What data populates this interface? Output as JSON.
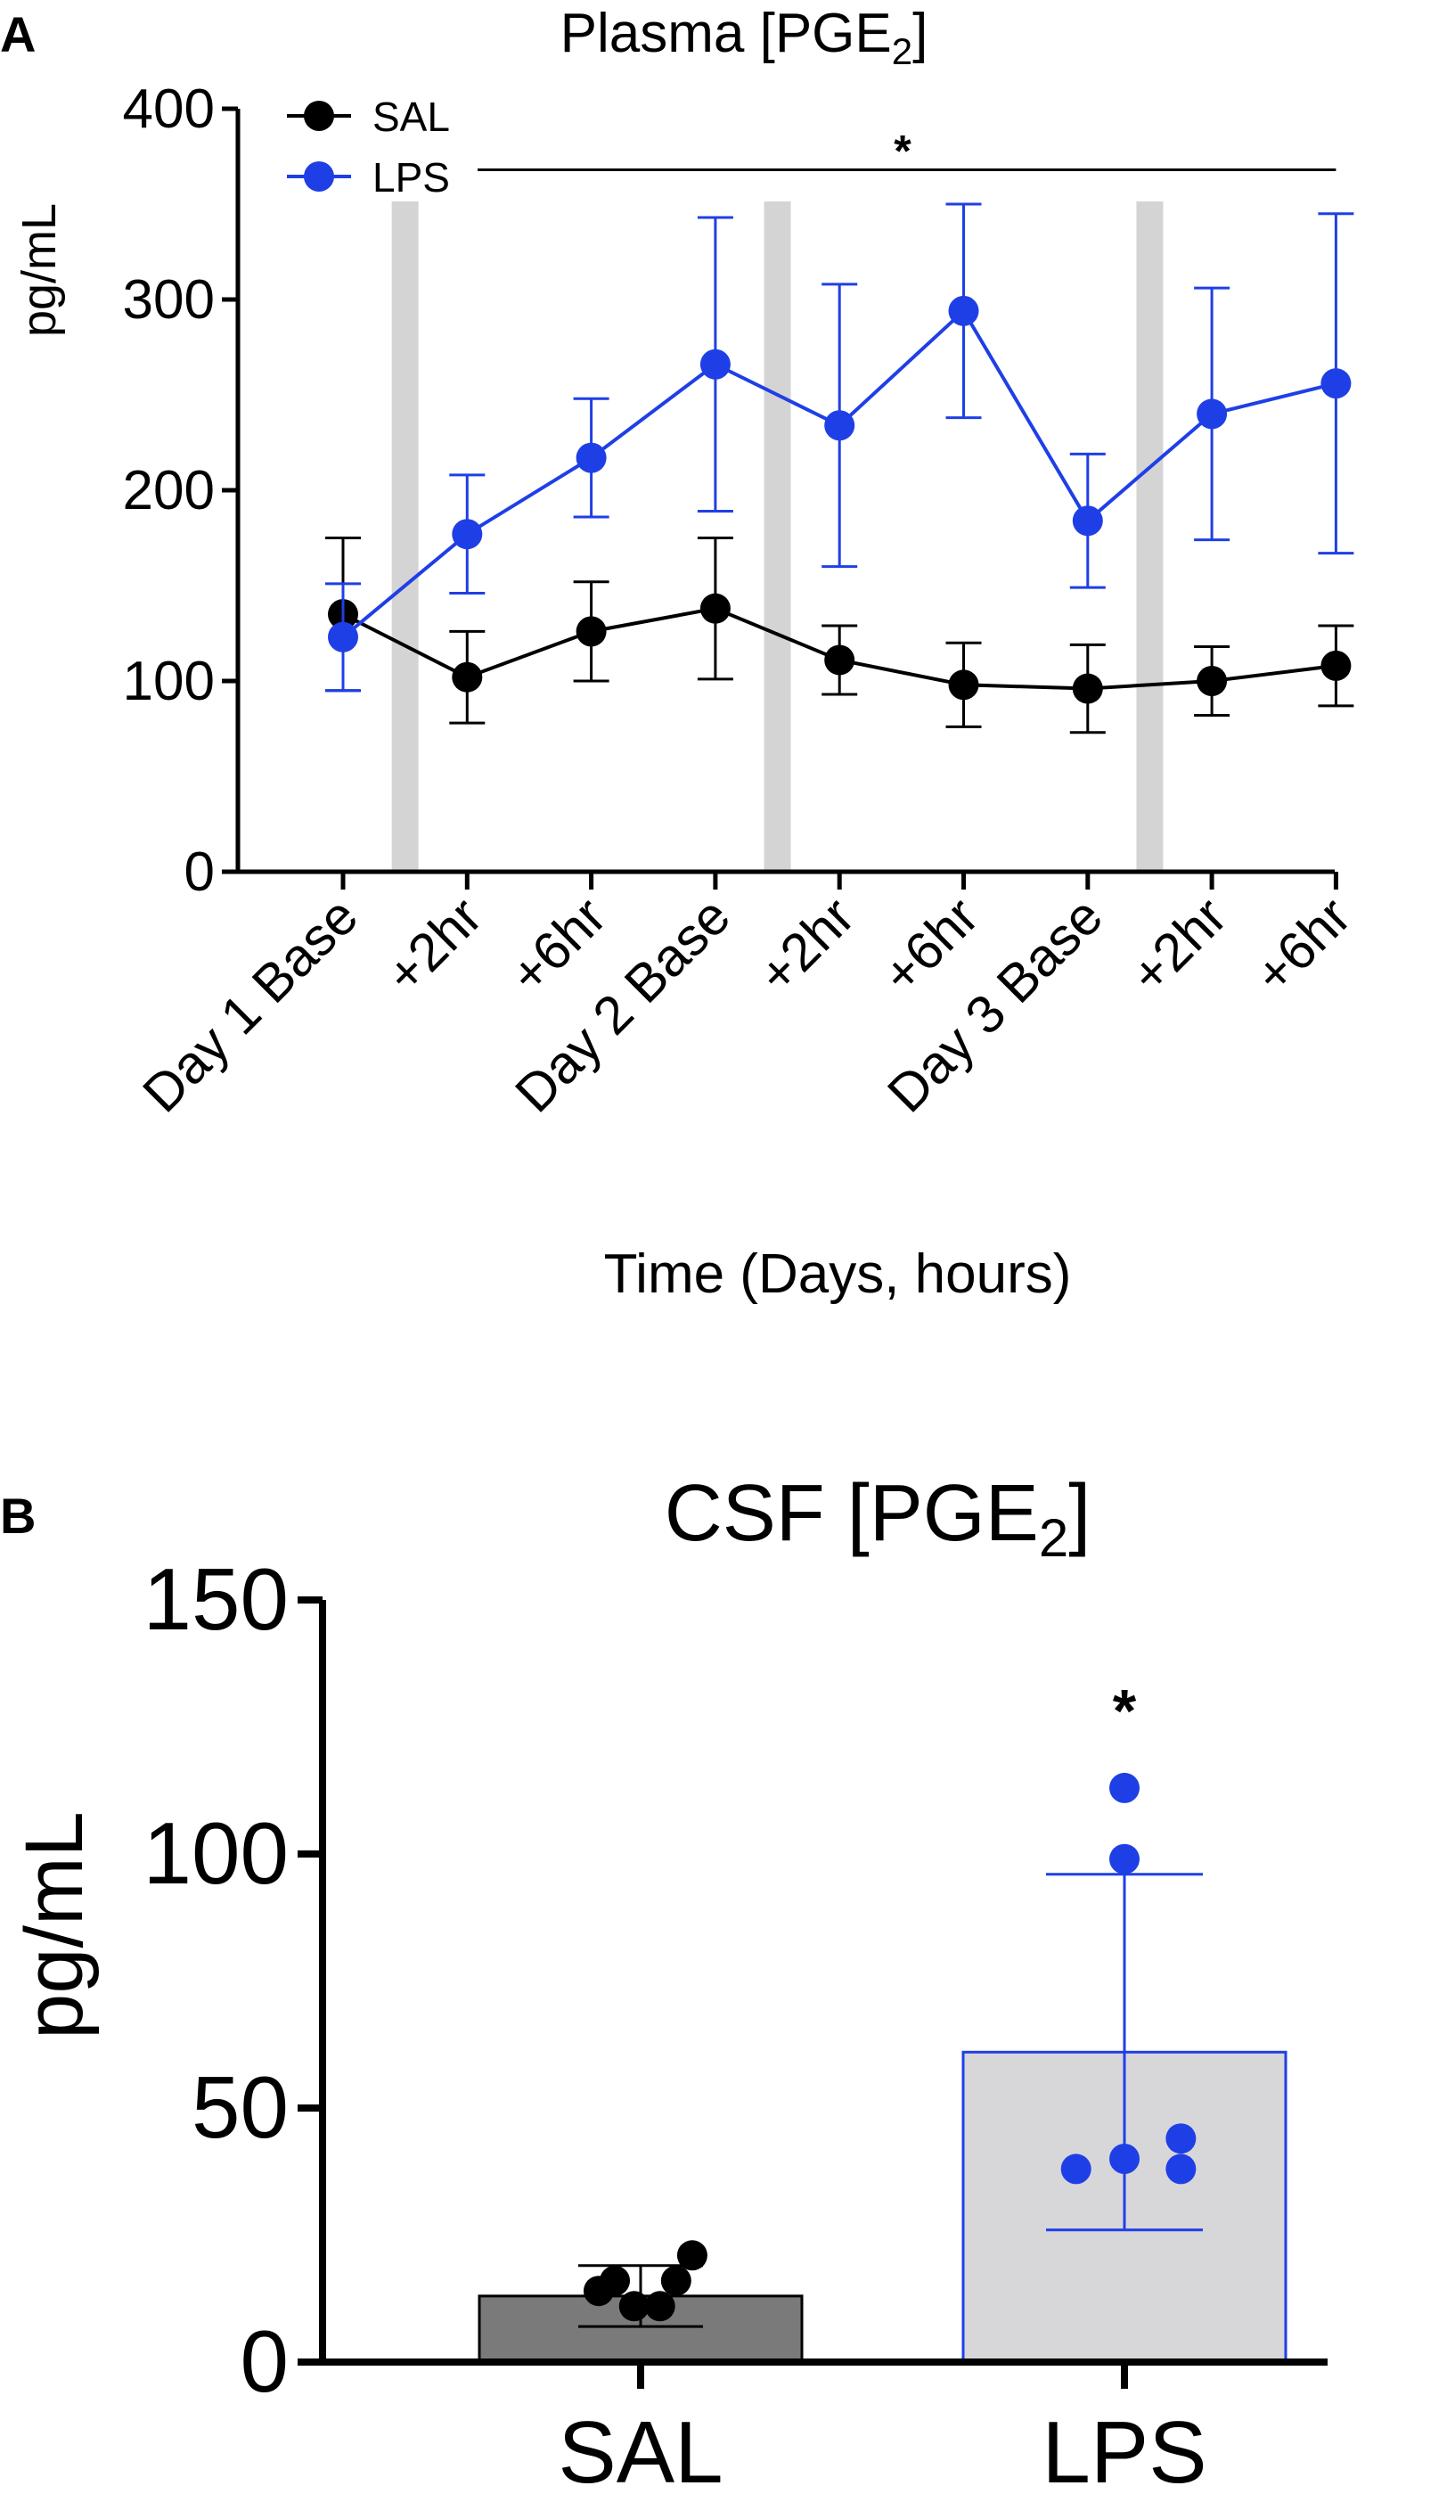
{
  "chart_data": [
    {
      "type": "line",
      "panel_label": "A",
      "title": "Plasma [PGE",
      "title_subscript": "2",
      "title_suffix": "]",
      "xlabel": "Time (Days, hours)",
      "ylabel": "pg/mL",
      "ylim": [
        0,
        400
      ],
      "yticks": [
        0,
        100,
        200,
        300,
        400
      ],
      "categories": [
        "Day 1 Base",
        "+2hr",
        "+6hr",
        "Day 2 Base",
        "+2hr",
        "+6hr",
        "Day 3 Base",
        "+2hr",
        "+6hr"
      ],
      "shaded_between": [
        [
          0,
          1
        ],
        [
          3,
          4
        ],
        [
          6,
          7
        ]
      ],
      "series": [
        {
          "name": "SAL",
          "color": "#000000",
          "values": [
            135,
            102,
            126,
            138,
            111,
            98,
            96,
            100,
            108
          ],
          "error": [
            40,
            24,
            26,
            37,
            18,
            22,
            23,
            18,
            21
          ]
        },
        {
          "name": "LPS",
          "color": "#1f3fe6",
          "values": [
            123,
            177,
            217,
            266,
            234,
            294,
            184,
            240,
            256
          ],
          "error": [
            28,
            31,
            31,
            77,
            74,
            56,
            35,
            66,
            89
          ]
        }
      ],
      "significance": {
        "label": "*",
        "from_category": 1,
        "to_category": 8,
        "at_value": 368
      },
      "legend_position": "top-left"
    },
    {
      "type": "bar",
      "panel_label": "B",
      "title": "CSF [PGE",
      "title_subscript": "2",
      "title_suffix": "]",
      "xlabel": "",
      "ylabel": "pg/mL",
      "ylim": [
        0,
        150
      ],
      "yticks": [
        0,
        50,
        100,
        150
      ],
      "categories": [
        "SAL",
        "LPS"
      ],
      "series": [
        {
          "name": "SAL",
          "value": 13,
          "error": 6,
          "bar_color": "#7a7a7a",
          "edge_color": "#000000",
          "point_color": "#000000",
          "points": [
            [
              -0.26,
              14
            ],
            [
              -0.16,
              16
            ],
            [
              -0.04,
              11
            ],
            [
              0.12,
              11
            ],
            [
              0.22,
              16
            ],
            [
              0.32,
              21
            ]
          ]
        },
        {
          "name": "LPS",
          "value": 61,
          "error": 35,
          "bar_color": "#d7d7da",
          "edge_color": "#1f3fe6",
          "point_color": "#1f3fe6",
          "points": [
            [
              -0.3,
              38
            ],
            [
              0.0,
              40
            ],
            [
              0.35,
              44
            ],
            [
              0.35,
              38
            ],
            [
              0.0,
              99
            ],
            [
              0.0,
              113
            ]
          ]
        }
      ],
      "significance": {
        "label": "*",
        "category": 1,
        "at_value": 128
      }
    }
  ]
}
